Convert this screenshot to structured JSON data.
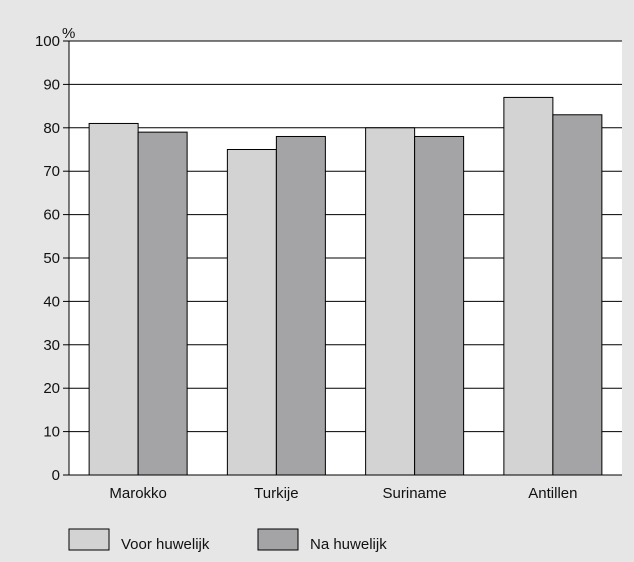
{
  "chart_data": {
    "type": "bar",
    "ylabel": "%",
    "ylim": [
      0,
      100
    ],
    "yticks": [
      0,
      10,
      20,
      30,
      40,
      50,
      60,
      70,
      80,
      90,
      100
    ],
    "categories": [
      "Marokko",
      "Turkije",
      "Suriname",
      "Antillen"
    ],
    "series": [
      {
        "name": "Voor huwelijk",
        "values": [
          81,
          75,
          80,
          87
        ],
        "color": "#d3d3d3"
      },
      {
        "name": "Na huwelijk",
        "values": [
          79,
          78,
          78,
          83
        ],
        "color": "#a4a4a6"
      }
    ],
    "grid": true,
    "legend_position": "bottom-left",
    "colors": {
      "background": "#e6e6e6",
      "plot_area": "#ffffff",
      "axis": "#000000"
    }
  }
}
